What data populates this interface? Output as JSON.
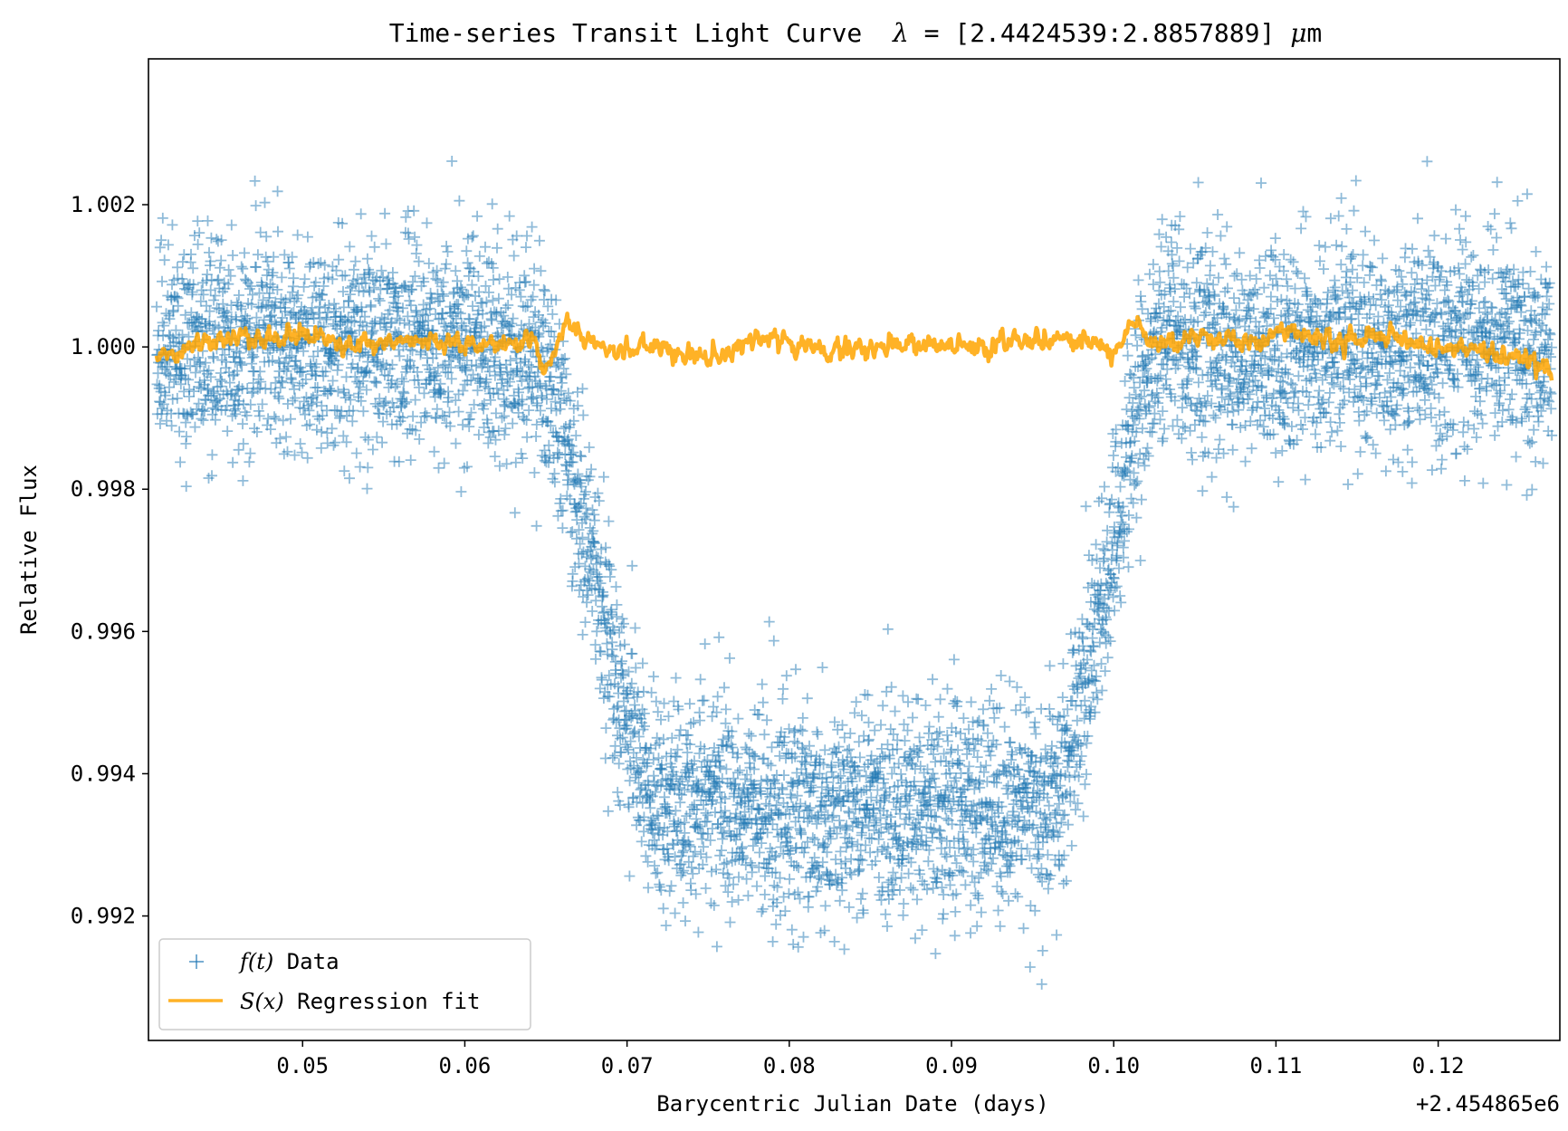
{
  "chart_data": {
    "type": "scatter",
    "title": "Time-series Transit Light Curve  λ = [2.4424539:2.8857889] μm",
    "title_parts": {
      "prefix": "Time-series Transit Light Curve",
      "lambda": "λ",
      "equals": " = ",
      "range": "[2.4424539:2.8857889]",
      "mu": "μ",
      "unit": "m"
    },
    "xlabel": "Barycentric Julian Date (days)",
    "ylabel": "Relative Flux",
    "x_offset_label": "+2.454865e6",
    "xlim": [
      0.0405,
      0.1275
    ],
    "ylim": [
      0.99025,
      1.00405
    ],
    "xticks": [
      0.05,
      0.06,
      0.07,
      0.08,
      0.09,
      0.1,
      0.11,
      0.12
    ],
    "xtick_labels": [
      "0.05",
      "0.06",
      "0.07",
      "0.08",
      "0.09",
      "0.10",
      "0.11",
      "0.12"
    ],
    "yticks": [
      0.992,
      0.994,
      0.996,
      0.998,
      1.0,
      1.002
    ],
    "ytick_labels": [
      "0.992",
      "0.994",
      "0.996",
      "0.998",
      "1.000",
      "1.002"
    ],
    "grid": false,
    "legend_position": "lower-left",
    "colors": {
      "data": "#1f77b4",
      "fit": "#ffa500"
    },
    "series": [
      {
        "name": "f(t) Data",
        "legend_math": "f(t)",
        "legend_text": "Data",
        "marker": "+",
        "alpha": 0.5,
        "transit_model": {
          "baseline": 1.0,
          "depth": 0.0064,
          "ingress_start": 0.0635,
          "ingress_end": 0.0725,
          "egress_start": 0.0955,
          "egress_end": 0.1035,
          "scatter_sigma": 0.00075,
          "approx_points": 5500
        },
        "sample_points": [
          [
            0.045,
            1.0004
          ],
          [
            0.05,
            1.0002
          ],
          [
            0.055,
            1.0001
          ],
          [
            0.06,
            1.0003
          ],
          [
            0.065,
            0.999
          ],
          [
            0.068,
            0.9965
          ],
          [
            0.072,
            0.9942
          ],
          [
            0.076,
            0.9937
          ],
          [
            0.08,
            0.9936
          ],
          [
            0.085,
            0.9935
          ],
          [
            0.09,
            0.9936
          ],
          [
            0.095,
            0.994
          ],
          [
            0.099,
            0.9955
          ],
          [
            0.101,
            0.9978
          ],
          [
            0.104,
            0.9997
          ],
          [
            0.11,
            1.0002
          ],
          [
            0.115,
            1.0001
          ],
          [
            0.12,
            0.9999
          ],
          [
            0.125,
            0.9996
          ]
        ]
      },
      {
        "name": "S(x) Regression fit",
        "legend_math": "S(x)",
        "legend_text": "Regression fit",
        "type": "line",
        "points": [
          [
            0.041,
            0.99985
          ],
          [
            0.044,
            1.00005
          ],
          [
            0.047,
            1.0001
          ],
          [
            0.05,
            1.0002
          ],
          [
            0.053,
            1.00005
          ],
          [
            0.056,
            1.0001
          ],
          [
            0.059,
            1.0
          ],
          [
            0.062,
            1.00005
          ],
          [
            0.064,
            1.0001
          ],
          [
            0.065,
            0.9997
          ],
          [
            0.0665,
            1.00025
          ],
          [
            0.069,
            0.99995
          ],
          [
            0.072,
            1.0
          ],
          [
            0.075,
            0.99985
          ],
          [
            0.078,
            1.0001
          ],
          [
            0.081,
            1.0
          ],
          [
            0.084,
            0.99995
          ],
          [
            0.087,
            1.00005
          ],
          [
            0.09,
            1.0
          ],
          [
            0.093,
            1.00005
          ],
          [
            0.096,
            1.0001
          ],
          [
            0.099,
            1.00005
          ],
          [
            0.1,
            0.9999
          ],
          [
            0.1012,
            1.0004
          ],
          [
            0.1025,
            1.0
          ],
          [
            0.105,
            1.00015
          ],
          [
            0.108,
            1.00005
          ],
          [
            0.111,
            1.0002
          ],
          [
            0.114,
            1.0001
          ],
          [
            0.117,
            1.00015
          ],
          [
            0.12,
            1.0
          ],
          [
            0.123,
            0.99995
          ],
          [
            0.125,
            0.99985
          ],
          [
            0.127,
            0.9997
          ]
        ]
      }
    ]
  }
}
